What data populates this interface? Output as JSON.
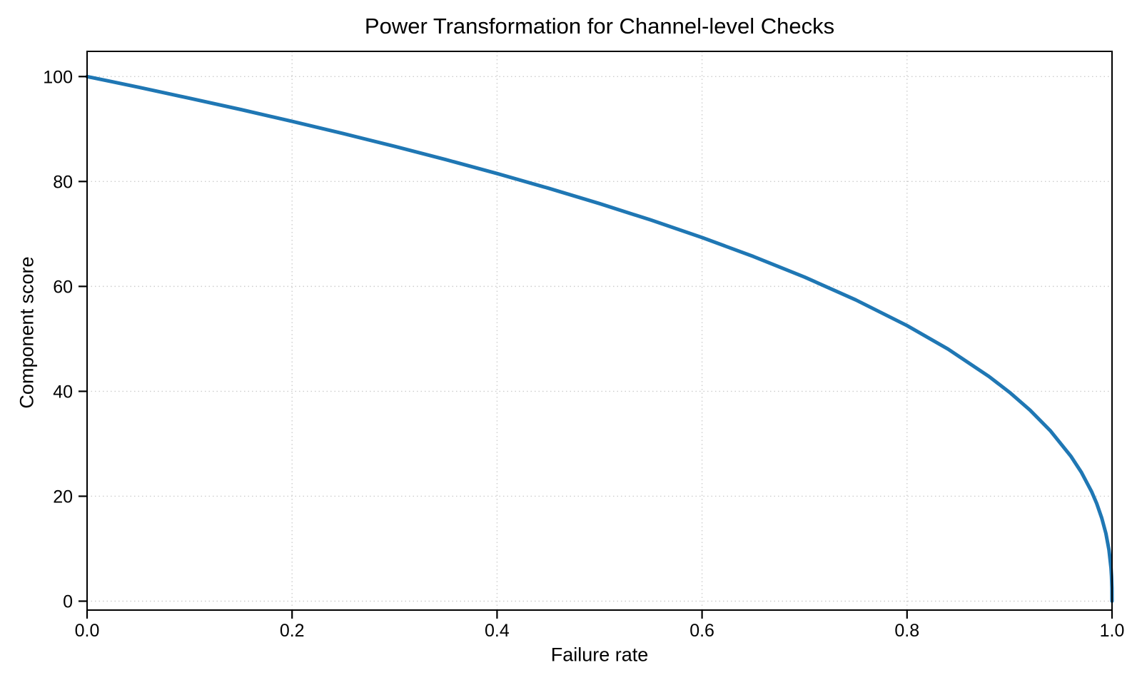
{
  "chart_data": {
    "type": "line",
    "title": "Power Transformation for Channel-level Checks",
    "xlabel": "Failure rate",
    "ylabel": "Component score",
    "xlim": [
      0,
      1
    ],
    "ylim": [
      -1.7,
      104.8
    ],
    "x_ticks": [
      "0.0",
      "0.2",
      "0.4",
      "0.6",
      "0.8",
      "1.0"
    ],
    "x_tick_values": [
      0,
      0.2,
      0.4,
      0.6,
      0.8,
      1.0
    ],
    "y_ticks": [
      "0",
      "20",
      "40",
      "60",
      "80",
      "100"
    ],
    "y_tick_values": [
      0,
      20,
      40,
      60,
      80,
      100
    ],
    "grid": "dotted",
    "legend": "none",
    "background": "#ffffff",
    "line_color": "#1f77b4",
    "grid_color": "#cdcdcd",
    "formula": "y = 100 * (1 - x)^0.4",
    "series": [
      {
        "name": "component-score",
        "x": [
          0,
          0.025,
          0.05,
          0.075,
          0.1,
          0.15,
          0.2,
          0.25,
          0.3,
          0.35,
          0.4,
          0.45,
          0.5,
          0.55,
          0.6,
          0.65,
          0.7,
          0.75,
          0.8,
          0.84,
          0.88,
          0.9,
          0.92,
          0.94,
          0.96,
          0.97,
          0.98,
          0.985,
          0.99,
          0.994,
          0.997,
          0.999,
          0.9995,
          0.9999,
          1.0
        ],
        "y": [
          100,
          98.99,
          97.97,
          96.93,
          95.87,
          93.71,
          91.46,
          89.13,
          86.7,
          84.17,
          81.52,
          78.73,
          75.79,
          72.66,
          69.31,
          65.71,
          61.78,
          57.43,
          52.53,
          48.05,
          42.82,
          39.81,
          36.41,
          32.45,
          27.59,
          24.6,
          20.91,
          18.64,
          15.85,
          12.92,
          9.79,
          6.31,
          4.78,
          2.51,
          0
        ]
      }
    ]
  }
}
